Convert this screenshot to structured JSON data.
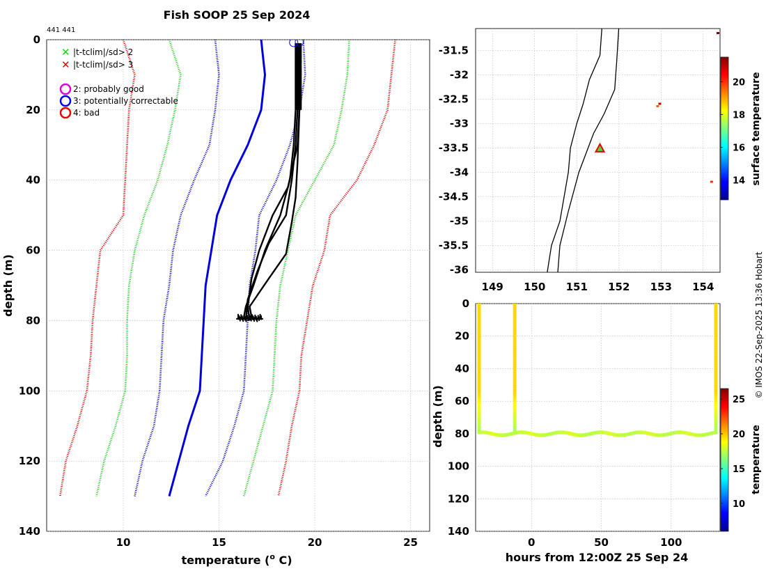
{
  "title": "Fish SOOP 25 Sep 2024",
  "id_label": "441 441",
  "credit": "© IMOS 22-Sep-2025 13:36 Hobart",
  "legend": {
    "crosses": [
      {
        "label": "|t-tclim|/sd> 2",
        "color": "#00dd00"
      },
      {
        "label": "|t-tclim|/sd> 3",
        "color": "#ee0000"
      }
    ],
    "circles": [
      {
        "label": "2: probably good",
        "color": "#e000e0"
      },
      {
        "label": "3: potentially correctable",
        "color": "#0000ee"
      },
      {
        "label": "4: bad",
        "color": "#ee0000"
      }
    ]
  },
  "chart_data": [
    {
      "name": "profile",
      "type": "line",
      "xlabel": "temperature (°C)",
      "xlabel_main": "temperature (",
      "xlabel_sup": "o",
      "xlabel_tail": " C)",
      "ylabel": "depth (m)",
      "xlim": [
        6,
        26
      ],
      "ylim": [
        140,
        0
      ],
      "xticks": [
        10,
        15,
        20,
        25
      ],
      "yticks": [
        0,
        20,
        40,
        60,
        80,
        100,
        120,
        140
      ],
      "grid": true,
      "climatology_depths": [
        0,
        10,
        20,
        30,
        40,
        50,
        60,
        70,
        80,
        90,
        100,
        110,
        120,
        130
      ],
      "envelopes": [
        {
          "name": "clim -3sd",
          "style": "dotted",
          "color": "#dd0000",
          "values": [
            10.0,
            10.6,
            10.3,
            10.2,
            10.1,
            10.0,
            8.8,
            8.6,
            8.4,
            8.3,
            8.1,
            7.6,
            7.0,
            6.7
          ]
        },
        {
          "name": "clim -2sd",
          "style": "dotted",
          "color": "#22cc22",
          "values": [
            12.4,
            13.0,
            12.7,
            12.3,
            11.8,
            11.1,
            10.6,
            10.3,
            10.2,
            10.2,
            10.1,
            9.6,
            9.0,
            8.6
          ]
        },
        {
          "name": "clim -1sd",
          "style": "dotted",
          "color": "#0000cc",
          "values": [
            14.8,
            15.0,
            14.8,
            14.5,
            13.7,
            13.0,
            12.6,
            12.4,
            12.1,
            12.0,
            11.9,
            11.6,
            11.0,
            10.6
          ]
        },
        {
          "name": "clim mean",
          "style": "solid",
          "color": "#0000dd",
          "values": [
            17.2,
            17.4,
            17.2,
            16.5,
            15.6,
            14.9,
            14.6,
            14.3,
            14.2,
            14.1,
            14.0,
            13.4,
            12.9,
            12.4
          ]
        },
        {
          "name": "clim +1sd",
          "style": "dotted",
          "color": "#0000cc",
          "values": [
            19.4,
            19.5,
            19.2,
            18.7,
            18.0,
            17.1,
            16.9,
            16.6,
            16.5,
            16.4,
            16.3,
            15.8,
            15.2,
            14.3
          ]
        },
        {
          "name": "clim +2sd",
          "style": "dotted",
          "color": "#22cc22",
          "values": [
            21.8,
            21.7,
            21.4,
            21.0,
            20.0,
            19.0,
            18.6,
            18.2,
            18.0,
            17.9,
            17.8,
            17.3,
            16.8,
            16.3
          ]
        },
        {
          "name": "clim +3sd",
          "style": "dotted",
          "color": "#dd0000",
          "values": [
            24.2,
            24.0,
            23.8,
            23.1,
            22.2,
            20.8,
            20.5,
            19.9,
            19.6,
            19.3,
            19.2,
            18.8,
            18.5,
            18.1
          ]
        }
      ],
      "profiles": [
        {
          "depths": [
            1,
            20,
            30,
            40,
            50,
            60,
            70,
            76,
            79
          ],
          "values": [
            19.0,
            19.0,
            18.9,
            18.7,
            18.2,
            17.4,
            16.8,
            16.4,
            16.3
          ]
        },
        {
          "depths": [
            1,
            20,
            30,
            40,
            50,
            58,
            66,
            74,
            80
          ],
          "values": [
            19.1,
            19.1,
            19.0,
            18.8,
            18.5,
            17.6,
            17.0,
            16.5,
            16.4
          ]
        },
        {
          "depths": [
            1,
            20,
            30,
            42,
            50,
            60,
            68,
            76,
            80
          ],
          "values": [
            19.2,
            19.2,
            19.1,
            18.6,
            17.8,
            17.1,
            16.7,
            16.5,
            16.6
          ]
        },
        {
          "depths": [
            1,
            20,
            35,
            45,
            52,
            61,
            68,
            76,
            79
          ],
          "values": [
            19.2,
            19.2,
            19.1,
            19.0,
            18.8,
            18.5,
            17.6,
            16.6,
            16.7
          ]
        }
      ],
      "qc_circles": [
        {
          "value": 18.9,
          "depth": 0.8
        },
        {
          "value": 19.2,
          "depth": 0.6
        }
      ]
    },
    {
      "name": "map",
      "type": "map",
      "xlim": [
        148.6,
        154.4
      ],
      "ylim": [
        -36.05,
        -31.05
      ],
      "xticks": [
        149,
        150,
        151,
        152,
        153,
        154
      ],
      "yticks": [
        -31.5,
        -32,
        -32.5,
        -33,
        -33.5,
        -34,
        -34.5,
        -35,
        -35.5,
        -36
      ],
      "grid": true,
      "coastline": [
        [
          151.6,
          -31.0
        ],
        [
          151.55,
          -31.6
        ],
        [
          151.3,
          -32.1
        ],
        [
          151.15,
          -32.6
        ],
        [
          151.0,
          -33.0
        ],
        [
          150.85,
          -33.5
        ],
        [
          150.8,
          -34.0
        ],
        [
          150.7,
          -34.5
        ],
        [
          150.6,
          -35.0
        ],
        [
          150.4,
          -35.5
        ],
        [
          150.3,
          -36.05
        ]
      ],
      "shelf_edge": [
        [
          152.0,
          -31.0
        ],
        [
          151.95,
          -31.7
        ],
        [
          151.9,
          -32.3
        ],
        [
          151.65,
          -32.8
        ],
        [
          151.4,
          -33.2
        ],
        [
          151.05,
          -34.0
        ],
        [
          150.8,
          -34.8
        ],
        [
          150.6,
          -35.5
        ],
        [
          150.55,
          -36.05
        ]
      ],
      "ship_position": {
        "lon": 151.55,
        "lat": -33.52
      },
      "sst_points": [
        {
          "lon": 154.35,
          "lat": -31.15,
          "temp": 21.5
        },
        {
          "lon": 152.92,
          "lat": -32.65,
          "temp": 19.6
        },
        {
          "lon": 152.97,
          "lat": -32.6,
          "temp": 21.0
        },
        {
          "lon": 154.2,
          "lat": -34.2,
          "temp": 20.0
        }
      ],
      "colorbar": {
        "label": "surface temperature",
        "range": [
          12.8,
          21.5
        ],
        "ticks": [
          14,
          16,
          18,
          20
        ]
      }
    },
    {
      "name": "section",
      "type": "scatter",
      "xlabel": "hours from 12:00Z 25 Sep 24",
      "ylabel": "depth (m)",
      "xlim": [
        -40,
        135
      ],
      "ylim": [
        140,
        0
      ],
      "xticks": [
        0,
        50,
        100
      ],
      "yticks": [
        0,
        20,
        40,
        60,
        80,
        100,
        120,
        140
      ],
      "grid": true,
      "casts": [
        -37.5,
        -12,
        132
      ],
      "bottom_track": {
        "start": -37,
        "end": 132,
        "depth": 80,
        "temp": 18.2
      },
      "colorbar": {
        "label": "temperature",
        "range": [
          6,
          26.5
        ],
        "ticks": [
          10,
          15,
          20,
          25
        ]
      }
    }
  ]
}
